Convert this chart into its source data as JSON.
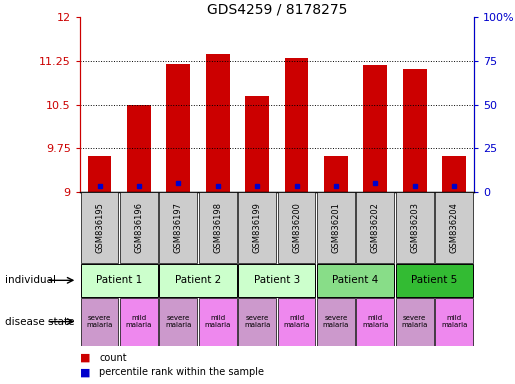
{
  "title": "GDS4259 / 8178275",
  "samples": [
    "GSM836195",
    "GSM836196",
    "GSM836197",
    "GSM836198",
    "GSM836199",
    "GSM836200",
    "GSM836201",
    "GSM836202",
    "GSM836203",
    "GSM836204"
  ],
  "bar_heights": [
    9.62,
    10.5,
    11.2,
    11.37,
    10.65,
    11.3,
    9.62,
    11.18,
    11.12,
    9.62
  ],
  "blue_y": [
    9.1,
    9.1,
    9.15,
    9.1,
    9.1,
    9.1,
    9.1,
    9.15,
    9.1,
    9.1
  ],
  "bar_color": "#cc0000",
  "blue_color": "#0000cc",
  "y_min": 9.0,
  "y_max": 12.0,
  "y_ticks": [
    9,
    9.75,
    10.5,
    11.25,
    12
  ],
  "y_tick_labels": [
    "9",
    "9.75",
    "10.5",
    "11.25",
    "12"
  ],
  "y2_ticks": [
    0,
    25,
    50,
    75,
    100
  ],
  "y2_tick_labels": [
    "0",
    "25",
    "50",
    "75",
    "100%"
  ],
  "patients": [
    {
      "label": "Patient 1",
      "cols": [
        0,
        1
      ],
      "color": "#ccffcc"
    },
    {
      "label": "Patient 2",
      "cols": [
        2,
        3
      ],
      "color": "#ccffcc"
    },
    {
      "label": "Patient 3",
      "cols": [
        4,
        5
      ],
      "color": "#ccffcc"
    },
    {
      "label": "Patient 4",
      "cols": [
        6,
        7
      ],
      "color": "#88dd88"
    },
    {
      "label": "Patient 5",
      "cols": [
        8,
        9
      ],
      "color": "#33bb33"
    }
  ],
  "disease_states": [
    {
      "label": "severe\nmalaria",
      "col": 0,
      "color": "#cc99cc"
    },
    {
      "label": "mild\nmalaria",
      "col": 1,
      "color": "#ee88ee"
    },
    {
      "label": "severe\nmalaria",
      "col": 2,
      "color": "#cc99cc"
    },
    {
      "label": "mild\nmalaria",
      "col": 3,
      "color": "#ee88ee"
    },
    {
      "label": "severe\nmalaria",
      "col": 4,
      "color": "#cc99cc"
    },
    {
      "label": "mild\nmalaria",
      "col": 5,
      "color": "#ee88ee"
    },
    {
      "label": "severe\nmalaria",
      "col": 6,
      "color": "#cc99cc"
    },
    {
      "label": "mild\nmalaria",
      "col": 7,
      "color": "#ee88ee"
    },
    {
      "label": "severe\nmalaria",
      "col": 8,
      "color": "#cc99cc"
    },
    {
      "label": "mild\nmalaria",
      "col": 9,
      "color": "#ee88ee"
    }
  ],
  "legend_count_color": "#cc0000",
  "legend_blue_color": "#0000cc",
  "bar_width": 0.6,
  "sample_bg_color": "#cccccc",
  "individual_label": "individual",
  "disease_label": "disease state"
}
